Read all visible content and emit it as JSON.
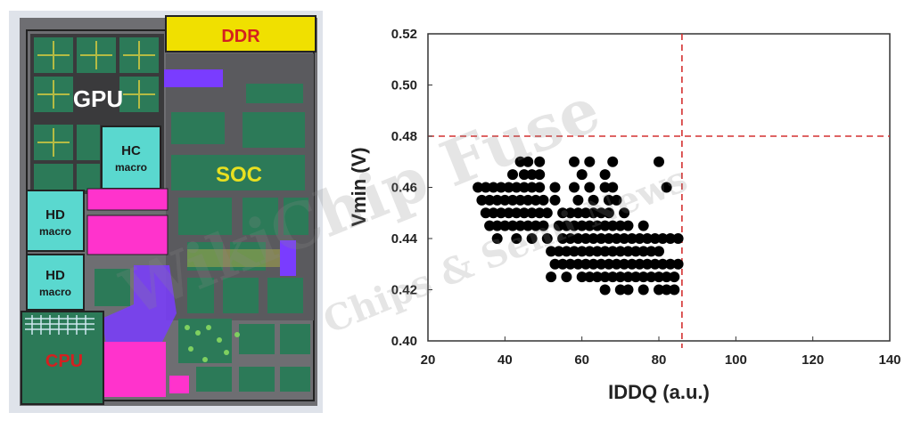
{
  "die_photo": {
    "blocks": [
      {
        "id": "ddr",
        "label": "DDR",
        "color": "#f0e000",
        "text_color": "#d42020"
      },
      {
        "id": "gpu",
        "label": "GPU",
        "color": "#2c7a58",
        "text_color": "#ffffff"
      },
      {
        "id": "hc",
        "label": "HC",
        "sublabel": "macro",
        "color": "#5ad8cf",
        "text_color": "#1a1a1a"
      },
      {
        "id": "soc",
        "label": "SOC",
        "color": "#2c7a58",
        "text_color": "#e8e020"
      },
      {
        "id": "hd1",
        "label": "HD",
        "sublabel": "macro",
        "color": "#5ad8cf",
        "text_color": "#1a1a1a"
      },
      {
        "id": "hd2",
        "label": "HD",
        "sublabel": "macro",
        "color": "#5ad8cf",
        "text_color": "#1a1a1a"
      },
      {
        "id": "cpu",
        "label": "CPU",
        "color": "#2c7a58",
        "text_color": "#d42020"
      }
    ],
    "accent_colors": {
      "magenta": "#ff33cc",
      "purple": "#7a3cff",
      "orange": "#f08a10",
      "grey": "#7a7a7a",
      "outline": "#222222"
    }
  },
  "watermark": {
    "line1": "WikiChip Fuse",
    "line2": "Chips & Semi News"
  },
  "chart_data": {
    "type": "scatter",
    "xlabel": "IDDQ (a.u.)",
    "ylabel": "Vmin (V)",
    "xlim": [
      20,
      140
    ],
    "ylim": [
      0.4,
      0.52
    ],
    "xticks": [
      20,
      40,
      60,
      80,
      100,
      120,
      140
    ],
    "xtick_labels": [
      "20",
      "40",
      "60",
      "80",
      "100",
      "120",
      "140"
    ],
    "yticks": [
      0.4,
      0.42,
      0.44,
      0.46,
      0.48,
      0.5,
      0.52
    ],
    "ytick_labels": [
      "0.40",
      "0.42",
      "0.44",
      "0.46",
      "0.48",
      "0.50",
      "0.52"
    ],
    "grid": false,
    "reference_lines": {
      "vmin_limit": 0.48,
      "iddq_limit": 86,
      "color": "#d43030",
      "style": "dashed"
    },
    "marker_color": "#000000",
    "points": [
      [
        44,
        0.47
      ],
      [
        46,
        0.47
      ],
      [
        49,
        0.47
      ],
      [
        58,
        0.47
      ],
      [
        62,
        0.47
      ],
      [
        68,
        0.47
      ],
      [
        80,
        0.47
      ],
      [
        42,
        0.465
      ],
      [
        45,
        0.465
      ],
      [
        47,
        0.465
      ],
      [
        49,
        0.465
      ],
      [
        60,
        0.465
      ],
      [
        66,
        0.465
      ],
      [
        33,
        0.46
      ],
      [
        35,
        0.46
      ],
      [
        37,
        0.46
      ],
      [
        39,
        0.46
      ],
      [
        41,
        0.46
      ],
      [
        43,
        0.46
      ],
      [
        45,
        0.46
      ],
      [
        47,
        0.46
      ],
      [
        49,
        0.46
      ],
      [
        53,
        0.46
      ],
      [
        58,
        0.46
      ],
      [
        62,
        0.46
      ],
      [
        66,
        0.46
      ],
      [
        68,
        0.46
      ],
      [
        82,
        0.46
      ],
      [
        34,
        0.455
      ],
      [
        36,
        0.455
      ],
      [
        38,
        0.455
      ],
      [
        40,
        0.455
      ],
      [
        42,
        0.455
      ],
      [
        44,
        0.455
      ],
      [
        46,
        0.455
      ],
      [
        48,
        0.455
      ],
      [
        50,
        0.455
      ],
      [
        53,
        0.455
      ],
      [
        59,
        0.455
      ],
      [
        63,
        0.455
      ],
      [
        67,
        0.455
      ],
      [
        69,
        0.455
      ],
      [
        35,
        0.45
      ],
      [
        37,
        0.45
      ],
      [
        39,
        0.45
      ],
      [
        41,
        0.45
      ],
      [
        43,
        0.45
      ],
      [
        45,
        0.45
      ],
      [
        47,
        0.45
      ],
      [
        49,
        0.45
      ],
      [
        51,
        0.45
      ],
      [
        55,
        0.45
      ],
      [
        57,
        0.45
      ],
      [
        59,
        0.45
      ],
      [
        61,
        0.45
      ],
      [
        63,
        0.45
      ],
      [
        65,
        0.45
      ],
      [
        67,
        0.45
      ],
      [
        71,
        0.45
      ],
      [
        36,
        0.445
      ],
      [
        38,
        0.445
      ],
      [
        40,
        0.445
      ],
      [
        42,
        0.445
      ],
      [
        44,
        0.445
      ],
      [
        46,
        0.445
      ],
      [
        48,
        0.445
      ],
      [
        50,
        0.445
      ],
      [
        54,
        0.445
      ],
      [
        56,
        0.445
      ],
      [
        58,
        0.445
      ],
      [
        60,
        0.445
      ],
      [
        62,
        0.445
      ],
      [
        64,
        0.445
      ],
      [
        66,
        0.445
      ],
      [
        68,
        0.445
      ],
      [
        70,
        0.445
      ],
      [
        72,
        0.445
      ],
      [
        76,
        0.445
      ],
      [
        38,
        0.44
      ],
      [
        43,
        0.44
      ],
      [
        47,
        0.44
      ],
      [
        51,
        0.44
      ],
      [
        55,
        0.44
      ],
      [
        57,
        0.44
      ],
      [
        59,
        0.44
      ],
      [
        61,
        0.44
      ],
      [
        63,
        0.44
      ],
      [
        65,
        0.44
      ],
      [
        67,
        0.44
      ],
      [
        69,
        0.44
      ],
      [
        71,
        0.44
      ],
      [
        73,
        0.44
      ],
      [
        75,
        0.44
      ],
      [
        77,
        0.44
      ],
      [
        79,
        0.44
      ],
      [
        81,
        0.44
      ],
      [
        83,
        0.44
      ],
      [
        85,
        0.44
      ],
      [
        52,
        0.435
      ],
      [
        54,
        0.435
      ],
      [
        56,
        0.435
      ],
      [
        58,
        0.435
      ],
      [
        60,
        0.435
      ],
      [
        62,
        0.435
      ],
      [
        64,
        0.435
      ],
      [
        66,
        0.435
      ],
      [
        68,
        0.435
      ],
      [
        70,
        0.435
      ],
      [
        72,
        0.435
      ],
      [
        74,
        0.435
      ],
      [
        76,
        0.435
      ],
      [
        78,
        0.435
      ],
      [
        80,
        0.435
      ],
      [
        53,
        0.43
      ],
      [
        55,
        0.43
      ],
      [
        57,
        0.43
      ],
      [
        59,
        0.43
      ],
      [
        61,
        0.43
      ],
      [
        63,
        0.43
      ],
      [
        65,
        0.43
      ],
      [
        67,
        0.43
      ],
      [
        69,
        0.43
      ],
      [
        71,
        0.43
      ],
      [
        73,
        0.43
      ],
      [
        75,
        0.43
      ],
      [
        77,
        0.43
      ],
      [
        79,
        0.43
      ],
      [
        81,
        0.43
      ],
      [
        83,
        0.43
      ],
      [
        85,
        0.43
      ],
      [
        52,
        0.425
      ],
      [
        56,
        0.425
      ],
      [
        60,
        0.425
      ],
      [
        62,
        0.425
      ],
      [
        64,
        0.425
      ],
      [
        66,
        0.425
      ],
      [
        68,
        0.425
      ],
      [
        70,
        0.425
      ],
      [
        72,
        0.425
      ],
      [
        74,
        0.425
      ],
      [
        76,
        0.425
      ],
      [
        78,
        0.425
      ],
      [
        80,
        0.425
      ],
      [
        82,
        0.425
      ],
      [
        84,
        0.425
      ],
      [
        66,
        0.42
      ],
      [
        70,
        0.42
      ],
      [
        72,
        0.42
      ],
      [
        76,
        0.42
      ],
      [
        80,
        0.42
      ],
      [
        82,
        0.42
      ],
      [
        84,
        0.42
      ]
    ]
  }
}
